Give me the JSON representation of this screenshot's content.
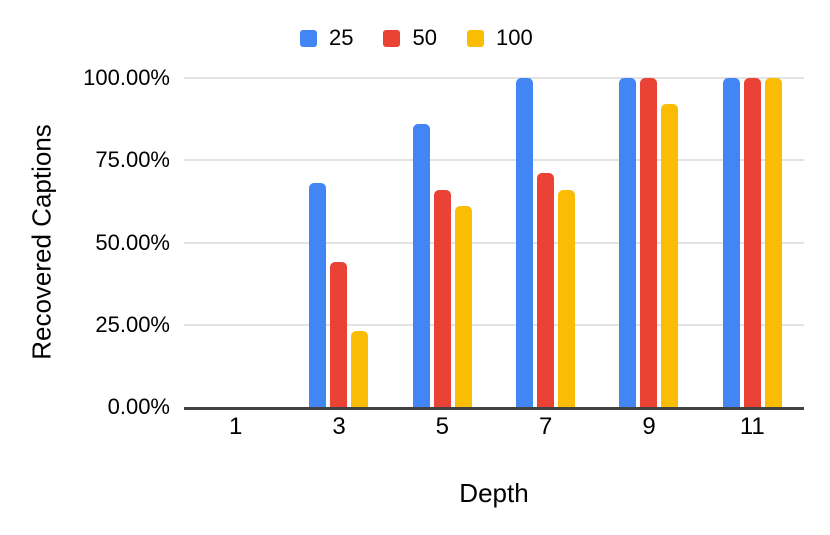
{
  "chart_data": {
    "type": "bar",
    "title": "",
    "xlabel": "Depth",
    "ylabel": "Recovered Captions",
    "categories": [
      "1",
      "3",
      "5",
      "7",
      "9",
      "11"
    ],
    "series": [
      {
        "name": "25",
        "color": "#4285F4",
        "values": [
          0,
          68,
          86,
          100,
          100,
          100
        ]
      },
      {
        "name": "50",
        "color": "#EA4335",
        "values": [
          0,
          44,
          66,
          71,
          100,
          100
        ]
      },
      {
        "name": "100",
        "color": "#FBBC04",
        "values": [
          0,
          23,
          61,
          66,
          92,
          100
        ]
      }
    ],
    "ylim": [
      0,
      100
    ],
    "ytick_labels": [
      "100.00%",
      "75.00%",
      "50.00%",
      "25.00%",
      "0.00%"
    ],
    "grid": true,
    "legend_position": "top"
  },
  "style": {
    "background": "#ffffff",
    "gridline_color": "#e3e3e3",
    "axis_line_color": "#424242",
    "text_color": "#000000"
  }
}
